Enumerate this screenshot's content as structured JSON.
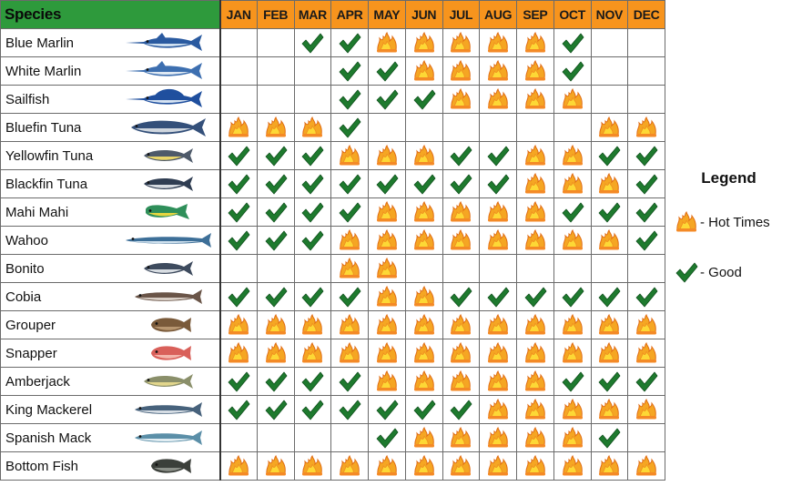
{
  "header": {
    "species_label": "Species",
    "months": [
      "JAN",
      "FEB",
      "MAR",
      "APR",
      "MAY",
      "JUN",
      "JUL",
      "AUG",
      "SEP",
      "OCT",
      "NOV",
      "DEC"
    ]
  },
  "legend": {
    "title": "Legend",
    "hot_label": "- Hot Times",
    "good_label": "- Good"
  },
  "symbols": {
    "H": "hot-times-icon",
    "G": "good-checkmark-icon"
  },
  "colors": {
    "header_orange": "#f7941d",
    "species_green": "#2e9a3c",
    "check_green": "#1e7a2e"
  },
  "species": [
    {
      "name": "Blue Marlin",
      "icon": "blue-marlin-icon",
      "months": [
        "",
        "",
        "G",
        "G",
        "H",
        "H",
        "H",
        "H",
        "H",
        "G",
        "",
        ""
      ]
    },
    {
      "name": "White Marlin",
      "icon": "white-marlin-icon",
      "months": [
        "",
        "",
        "",
        "G",
        "G",
        "H",
        "H",
        "H",
        "H",
        "G",
        "",
        ""
      ]
    },
    {
      "name": "Sailfish",
      "icon": "sailfish-icon",
      "months": [
        "",
        "",
        "",
        "G",
        "G",
        "G",
        "H",
        "H",
        "H",
        "H",
        "",
        ""
      ]
    },
    {
      "name": "Bluefin Tuna",
      "icon": "bluefin-tuna-icon",
      "months": [
        "H",
        "H",
        "H",
        "G",
        "",
        "",
        "",
        "",
        "",
        "",
        "H",
        "H"
      ]
    },
    {
      "name": "Yellowfin Tuna",
      "icon": "yellowfin-tuna-icon",
      "months": [
        "G",
        "G",
        "G",
        "H",
        "H",
        "H",
        "G",
        "G",
        "H",
        "H",
        "G",
        "G"
      ]
    },
    {
      "name": "Blackfin Tuna",
      "icon": "blackfin-tuna-icon",
      "months": [
        "G",
        "G",
        "G",
        "G",
        "G",
        "G",
        "G",
        "G",
        "H",
        "H",
        "H",
        "G"
      ]
    },
    {
      "name": "Mahi Mahi",
      "icon": "mahi-mahi-icon",
      "months": [
        "G",
        "G",
        "G",
        "G",
        "H",
        "H",
        "H",
        "H",
        "H",
        "G",
        "G",
        "G"
      ]
    },
    {
      "name": "Wahoo",
      "icon": "wahoo-icon",
      "months": [
        "G",
        "G",
        "G",
        "H",
        "H",
        "H",
        "H",
        "H",
        "H",
        "H",
        "H",
        "G"
      ]
    },
    {
      "name": "Bonito",
      "icon": "bonito-icon",
      "months": [
        "",
        "",
        "",
        "H",
        "H",
        "",
        "",
        "",
        "",
        "",
        "",
        ""
      ]
    },
    {
      "name": "Cobia",
      "icon": "cobia-icon",
      "months": [
        "G",
        "G",
        "G",
        "G",
        "H",
        "H",
        "G",
        "G",
        "G",
        "G",
        "G",
        "G"
      ]
    },
    {
      "name": "Grouper",
      "icon": "grouper-icon",
      "months": [
        "H",
        "H",
        "H",
        "H",
        "H",
        "H",
        "H",
        "H",
        "H",
        "H",
        "H",
        "H"
      ]
    },
    {
      "name": "Snapper",
      "icon": "snapper-icon",
      "months": [
        "H",
        "H",
        "H",
        "H",
        "H",
        "H",
        "H",
        "H",
        "H",
        "H",
        "H",
        "H"
      ]
    },
    {
      "name": "Amberjack",
      "icon": "amberjack-icon",
      "months": [
        "G",
        "G",
        "G",
        "G",
        "H",
        "H",
        "H",
        "H",
        "H",
        "G",
        "G",
        "G"
      ]
    },
    {
      "name": "King Mackerel",
      "icon": "king-mackerel-icon",
      "months": [
        "G",
        "G",
        "G",
        "G",
        "G",
        "G",
        "G",
        "H",
        "H",
        "H",
        "H",
        "H"
      ]
    },
    {
      "name": "Spanish Mack",
      "icon": "spanish-mackerel-icon",
      "months": [
        "",
        "",
        "",
        "",
        "G",
        "H",
        "H",
        "H",
        "H",
        "H",
        "G",
        ""
      ]
    },
    {
      "name": "Bottom Fish",
      "icon": "bottom-fish-icon",
      "months": [
        "H",
        "H",
        "H",
        "H",
        "H",
        "H",
        "H",
        "H",
        "H",
        "H",
        "H",
        "H"
      ]
    }
  ]
}
